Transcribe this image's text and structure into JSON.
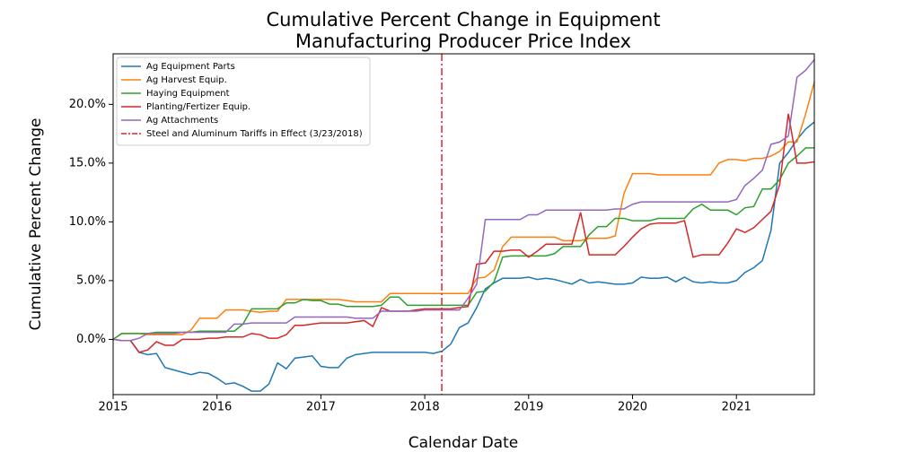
{
  "chart_data": {
    "type": "line",
    "title": [
      "Cumulative Percent Change in Equipment",
      "Manufacturing Producer Price Index"
    ],
    "x_label": "Calendar Date",
    "y_label": "Cumulative Percent Change",
    "x": [
      2015,
      2015.083,
      2015.167,
      2015.25,
      2015.333,
      2015.417,
      2015.5,
      2015.583,
      2015.667,
      2015.75,
      2015.833,
      2015.917,
      2016,
      2016.083,
      2016.167,
      2016.25,
      2016.333,
      2016.417,
      2016.5,
      2016.583,
      2016.667,
      2016.75,
      2016.833,
      2016.917,
      2017,
      2017.083,
      2017.167,
      2017.25,
      2017.333,
      2017.417,
      2017.5,
      2017.583,
      2017.667,
      2017.75,
      2017.833,
      2017.917,
      2018,
      2018.083,
      2018.167,
      2018.25,
      2018.333,
      2018.417,
      2018.5,
      2018.583,
      2018.667,
      2018.75,
      2018.833,
      2018.917,
      2019,
      2019.083,
      2019.167,
      2019.25,
      2019.333,
      2019.417,
      2019.5,
      2019.583,
      2019.667,
      2019.75,
      2019.833,
      2019.917,
      2020,
      2020.083,
      2020.167,
      2020.25,
      2020.333,
      2020.417,
      2020.5,
      2020.583,
      2020.667,
      2020.75,
      2020.833,
      2020.917,
      2021,
      2021.083,
      2021.167,
      2021.25,
      2021.333,
      2021.417,
      2021.5,
      2021.583,
      2021.667,
      2021.75
    ],
    "series": [
      {
        "name": "Ag Equipment Parts",
        "color": "#1f77b4",
        "values": [
          0,
          -0.1,
          -0.1,
          -1.1,
          -1.3,
          -1.2,
          -2.4,
          -2.6,
          -2.8,
          -3.0,
          -2.8,
          -2.9,
          -3.3,
          -3.8,
          -3.7,
          -4.0,
          -4.4,
          -4.4,
          -3.8,
          -2.0,
          -2.5,
          -1.6,
          -1.5,
          -1.4,
          -2.3,
          -2.4,
          -2.4,
          -1.6,
          -1.3,
          -1.2,
          -1.1,
          -1.1,
          -1.1,
          -1.1,
          -1.1,
          -1.1,
          -1.1,
          -1.2,
          -1.0,
          -0.4,
          1.0,
          1.4,
          2.7,
          4.3,
          4.8,
          5.2,
          5.2,
          5.2,
          5.3,
          5.1,
          5.2,
          5.1,
          4.9,
          4.7,
          5.1,
          4.8,
          4.9,
          4.8,
          4.7,
          4.7,
          4.8,
          5.3,
          5.2,
          5.2,
          5.3,
          4.9,
          5.3,
          4.9,
          4.8,
          4.9,
          4.8,
          4.8,
          5.0,
          5.7,
          6.1,
          6.7,
          9.3,
          15.0,
          15.9,
          17.0,
          17.9,
          18.5
        ]
      },
      {
        "name": "Ag Harvest Equip.",
        "color": "#ff7f0e",
        "values": [
          0,
          0.5,
          0.5,
          0.5,
          0.4,
          0.4,
          0.4,
          0.4,
          0.4,
          0.8,
          1.8,
          1.8,
          1.8,
          2.5,
          2.5,
          2.5,
          2.4,
          2.3,
          2.4,
          2.4,
          3.4,
          3.4,
          3.4,
          3.4,
          3.4,
          3.4,
          3.4,
          3.3,
          3.2,
          3.2,
          3.2,
          3.2,
          3.9,
          3.9,
          3.9,
          3.9,
          3.9,
          3.9,
          3.9,
          3.9,
          3.9,
          3.9,
          5.2,
          5.3,
          5.9,
          7.9,
          8.7,
          8.7,
          8.7,
          8.7,
          8.7,
          8.7,
          8.4,
          8.4,
          8.4,
          8.6,
          8.6,
          8.6,
          8.8,
          12.4,
          14.1,
          14.1,
          14.1,
          14.0,
          14.0,
          14.0,
          14.0,
          14.0,
          14.0,
          14.0,
          15.0,
          15.3,
          15.3,
          15.2,
          15.4,
          15.4,
          15.6,
          16.0,
          16.8,
          16.8,
          19.2,
          21.9
        ]
      },
      {
        "name": "Haying Equipment",
        "color": "#2ca02c",
        "values": [
          0,
          0.5,
          0.5,
          0.5,
          0.5,
          0.6,
          0.6,
          0.6,
          0.6,
          0.6,
          0.7,
          0.7,
          0.7,
          0.7,
          0.7,
          1.3,
          2.6,
          2.6,
          2.6,
          2.6,
          3.1,
          3.1,
          3.4,
          3.3,
          3.3,
          3.0,
          3.0,
          2.8,
          2.8,
          2.8,
          2.8,
          2.9,
          3.6,
          3.6,
          2.9,
          2.9,
          2.9,
          2.9,
          2.9,
          2.9,
          2.9,
          2.9,
          4.0,
          4.1,
          4.9,
          7.0,
          7.1,
          7.1,
          7.1,
          7.1,
          7.1,
          7.3,
          7.9,
          7.9,
          7.9,
          8.9,
          9.6,
          9.6,
          10.3,
          10.3,
          10.1,
          10.1,
          10.1,
          10.3,
          10.3,
          10.3,
          10.3,
          11.1,
          11.5,
          11.0,
          11.0,
          11.0,
          10.6,
          11.2,
          11.3,
          12.8,
          12.8,
          13.6,
          15.0,
          15.6,
          16.3,
          16.3
        ]
      },
      {
        "name": "Planting/Fertizer Equip.",
        "color": "#d62728",
        "values": [
          0,
          -0.1,
          -0.1,
          -1.1,
          -0.9,
          -0.2,
          -0.5,
          -0.5,
          0,
          0,
          0,
          0.1,
          0.1,
          0.2,
          0.2,
          0.2,
          0.5,
          0.4,
          0.1,
          0.1,
          0.4,
          1.2,
          1.2,
          1.3,
          1.4,
          1.4,
          1.4,
          1.4,
          1.5,
          1.6,
          1.1,
          2.7,
          2.4,
          2.4,
          2.4,
          2.5,
          2.6,
          2.6,
          2.6,
          2.6,
          2.7,
          2.8,
          6.4,
          6.5,
          7.5,
          7.5,
          7.6,
          7.6,
          7.0,
          7.5,
          8.1,
          8.1,
          8.1,
          8.1,
          10.8,
          7.2,
          7.2,
          7.2,
          7.2,
          7.9,
          8.7,
          9.4,
          9.8,
          9.9,
          9.9,
          9.9,
          10.1,
          7.0,
          7.2,
          7.2,
          7.2,
          8.2,
          9.4,
          9.1,
          9.5,
          10.2,
          10.9,
          13.2,
          19.2,
          15.0,
          15.0,
          15.1
        ]
      },
      {
        "name": "Ag Attachments",
        "color": "#9467bd",
        "values": [
          0,
          -0.1,
          -0.1,
          0.1,
          0.5,
          0.5,
          0.5,
          0.5,
          0.6,
          0.6,
          0.6,
          0.6,
          0.6,
          0.6,
          1.3,
          1.3,
          1.4,
          1.4,
          1.4,
          1.4,
          1.4,
          1.9,
          1.9,
          1.9,
          1.9,
          1.9,
          1.9,
          1.9,
          1.8,
          1.8,
          1.8,
          2.4,
          2.4,
          2.4,
          2.4,
          2.4,
          2.5,
          2.5,
          2.5,
          2.5,
          2.5,
          3.5,
          4.7,
          10.2,
          10.2,
          10.2,
          10.2,
          10.2,
          10.6,
          10.6,
          11.0,
          11.0,
          11.0,
          11.0,
          11.0,
          11.0,
          11.0,
          11.0,
          11.1,
          11.1,
          11.5,
          11.7,
          11.7,
          11.7,
          11.7,
          11.7,
          11.7,
          11.7,
          11.7,
          11.7,
          11.7,
          11.7,
          11.9,
          13.1,
          13.7,
          14.4,
          16.6,
          16.8,
          17.3,
          22.3,
          22.9,
          23.8
        ]
      }
    ],
    "vline": {
      "x": 2018.164,
      "label": "Steel and Aluminum Tariffs in Effect (3/23/2018)",
      "color": "#d62728"
    },
    "xlim": [
      2015,
      2021.75
    ],
    "xticks": [
      2015,
      2016,
      2017,
      2018,
      2019,
      2020,
      2021
    ],
    "ylim": [
      -4.7,
      24.3
    ],
    "yticks": [
      {
        "value": 0,
        "label": "0.0%"
      },
      {
        "value": 5,
        "label": "5.0%"
      },
      {
        "value": 10,
        "label": "10.0%"
      },
      {
        "value": 15,
        "label": "15.0%"
      },
      {
        "value": 20,
        "label": "20.0%"
      }
    ],
    "legend": "upper left"
  }
}
